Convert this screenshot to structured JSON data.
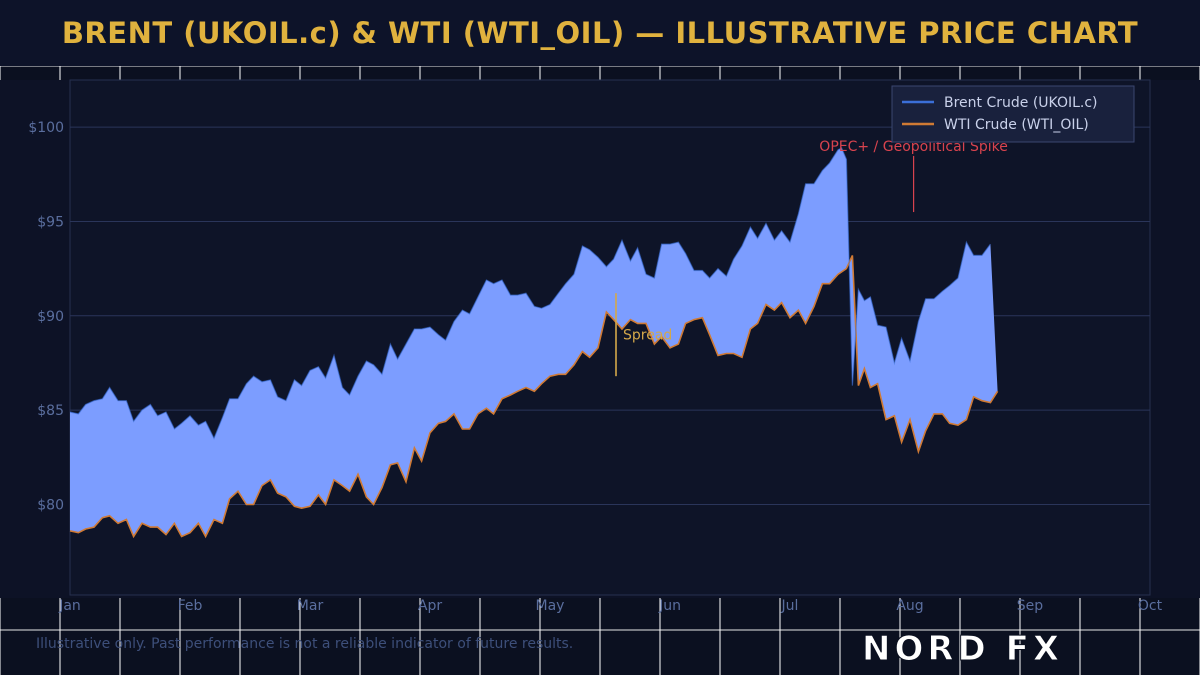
{
  "title": "BRENT (UKOIL.c) & WTI (WTI_OIL) — ILLUSTRATIVE PRICE CHART",
  "footer_note": "Illustrative only. Past performance is not a reliable indicator of future results.",
  "logo_text": "NORD FX",
  "colors": {
    "title": "#e0b23e",
    "brent": "#3b6fd8",
    "wti": "#d07a34",
    "fill": "#7c9dff",
    "annotation": "#d8434e",
    "spread": "#d4a84a",
    "axis_text": "#5a6e9e",
    "plot_bg": "#0e1428",
    "legend_bg": "#19213d"
  },
  "chart_data": {
    "type": "line",
    "title": "",
    "xlabel": "",
    "ylabel": "",
    "ylim": [
      75.2,
      102.5
    ],
    "xlim": [
      0,
      9
    ],
    "x_ticks": [
      {
        "x": 0,
        "label": "Jan"
      },
      {
        "x": 1,
        "label": "Feb"
      },
      {
        "x": 2,
        "label": "Mar"
      },
      {
        "x": 3,
        "label": "Apr"
      },
      {
        "x": 4,
        "label": "May"
      },
      {
        "x": 5,
        "label": "Jun"
      },
      {
        "x": 6,
        "label": "Jul"
      },
      {
        "x": 7,
        "label": "Aug"
      },
      {
        "x": 8,
        "label": "Sep"
      },
      {
        "x": 9,
        "label": "Oct"
      }
    ],
    "y_ticks": [
      {
        "y": 80,
        "label": "$80"
      },
      {
        "y": 85,
        "label": "$85"
      },
      {
        "y": 90,
        "label": "$90"
      },
      {
        "y": 95,
        "label": "$95"
      },
      {
        "y": 100,
        "label": "$100"
      }
    ],
    "grid": true,
    "legend_position": "top-right",
    "series": [
      {
        "name": "Brent Crude (UKOIL.c)",
        "points": [
          [
            0.0,
            84.9
          ],
          [
            0.07,
            84.8
          ],
          [
            0.13,
            85.3
          ],
          [
            0.2,
            85.5
          ],
          [
            0.27,
            85.6
          ],
          [
            0.33,
            86.2
          ],
          [
            0.4,
            85.5
          ],
          [
            0.47,
            85.5
          ],
          [
            0.53,
            84.4
          ],
          [
            0.6,
            85.0
          ],
          [
            0.67,
            85.3
          ],
          [
            0.73,
            84.7
          ],
          [
            0.8,
            84.9
          ],
          [
            0.87,
            84.0
          ],
          [
            0.93,
            84.3
          ],
          [
            1.0,
            84.7
          ],
          [
            1.07,
            84.2
          ],
          [
            1.13,
            84.4
          ],
          [
            1.2,
            83.5
          ],
          [
            1.27,
            84.6
          ],
          [
            1.33,
            85.6
          ],
          [
            1.4,
            85.6
          ],
          [
            1.47,
            86.4
          ],
          [
            1.53,
            86.8
          ],
          [
            1.6,
            86.5
          ],
          [
            1.67,
            86.6
          ],
          [
            1.73,
            85.7
          ],
          [
            1.8,
            85.5
          ],
          [
            1.87,
            86.6
          ],
          [
            1.93,
            86.3
          ],
          [
            2.0,
            87.1
          ],
          [
            2.07,
            87.3
          ],
          [
            2.13,
            86.7
          ],
          [
            2.2,
            87.9
          ],
          [
            2.27,
            86.2
          ],
          [
            2.33,
            85.8
          ],
          [
            2.4,
            86.8
          ],
          [
            2.47,
            87.6
          ],
          [
            2.53,
            87.4
          ],
          [
            2.6,
            86.9
          ],
          [
            2.67,
            88.5
          ],
          [
            2.73,
            87.7
          ],
          [
            2.8,
            88.5
          ],
          [
            2.87,
            89.3
          ],
          [
            2.93,
            89.3
          ],
          [
            3.0,
            89.4
          ],
          [
            3.07,
            89.0
          ],
          [
            3.13,
            88.7
          ],
          [
            3.2,
            89.7
          ],
          [
            3.27,
            90.3
          ],
          [
            3.33,
            90.1
          ],
          [
            3.4,
            91.0
          ],
          [
            3.47,
            91.9
          ],
          [
            3.53,
            91.7
          ],
          [
            3.6,
            91.9
          ],
          [
            3.67,
            91.1
          ],
          [
            3.73,
            91.1
          ],
          [
            3.8,
            91.2
          ],
          [
            3.87,
            90.5
          ],
          [
            3.93,
            90.4
          ],
          [
            4.0,
            90.6
          ],
          [
            4.07,
            91.2
          ],
          [
            4.13,
            91.7
          ],
          [
            4.2,
            92.2
          ],
          [
            4.27,
            93.7
          ],
          [
            4.33,
            93.5
          ],
          [
            4.4,
            93.1
          ],
          [
            4.47,
            92.6
          ],
          [
            4.53,
            93.0
          ],
          [
            4.6,
            94.0
          ],
          [
            4.67,
            92.9
          ],
          [
            4.73,
            93.6
          ],
          [
            4.8,
            92.2
          ],
          [
            4.87,
            92.0
          ],
          [
            4.93,
            93.8
          ],
          [
            5.0,
            93.8
          ],
          [
            5.07,
            93.9
          ],
          [
            5.13,
            93.3
          ],
          [
            5.2,
            92.4
          ],
          [
            5.27,
            92.4
          ],
          [
            5.33,
            92.0
          ],
          [
            5.4,
            92.5
          ],
          [
            5.47,
            92.1
          ],
          [
            5.53,
            93.0
          ],
          [
            5.6,
            93.7
          ],
          [
            5.67,
            94.7
          ],
          [
            5.73,
            94.1
          ],
          [
            5.8,
            94.9
          ],
          [
            5.87,
            94.0
          ],
          [
            5.93,
            94.5
          ],
          [
            6.0,
            93.9
          ],
          [
            6.07,
            95.4
          ],
          [
            6.13,
            97.0
          ],
          [
            6.2,
            97.0
          ],
          [
            6.27,
            97.7
          ],
          [
            6.33,
            98.1
          ],
          [
            6.4,
            98.8
          ],
          [
            6.43,
            98.9
          ],
          [
            6.47,
            98.3
          ],
          [
            6.52,
            86.3
          ],
          [
            6.57,
            91.4
          ],
          [
            6.62,
            90.8
          ],
          [
            6.67,
            91.0
          ],
          [
            6.73,
            89.5
          ],
          [
            6.8,
            89.4
          ],
          [
            6.87,
            87.5
          ],
          [
            6.93,
            88.8
          ],
          [
            7.0,
            87.6
          ],
          [
            7.07,
            89.7
          ],
          [
            7.13,
            90.9
          ],
          [
            7.2,
            90.9
          ],
          [
            7.27,
            91.3
          ],
          [
            7.33,
            91.6
          ],
          [
            7.4,
            92.0
          ],
          [
            7.47,
            93.9
          ],
          [
            7.53,
            93.2
          ],
          [
            7.6,
            93.2
          ],
          [
            7.67,
            93.8
          ]
        ]
      },
      {
        "name": "WTI Crude  (WTI_OIL)",
        "points": [
          [
            0.0,
            78.6
          ],
          [
            0.07,
            78.5
          ],
          [
            0.13,
            78.7
          ],
          [
            0.2,
            78.8
          ],
          [
            0.27,
            79.3
          ],
          [
            0.33,
            79.4
          ],
          [
            0.4,
            79.0
          ],
          [
            0.47,
            79.2
          ],
          [
            0.53,
            78.3
          ],
          [
            0.6,
            79.0
          ],
          [
            0.67,
            78.8
          ],
          [
            0.73,
            78.8
          ],
          [
            0.8,
            78.4
          ],
          [
            0.87,
            79.0
          ],
          [
            0.93,
            78.3
          ],
          [
            1.0,
            78.5
          ],
          [
            1.07,
            79.0
          ],
          [
            1.13,
            78.3
          ],
          [
            1.2,
            79.2
          ],
          [
            1.27,
            79.0
          ],
          [
            1.33,
            80.3
          ],
          [
            1.4,
            80.7
          ],
          [
            1.47,
            80.0
          ],
          [
            1.53,
            80.0
          ],
          [
            1.6,
            81.0
          ],
          [
            1.67,
            81.3
          ],
          [
            1.73,
            80.6
          ],
          [
            1.8,
            80.4
          ],
          [
            1.87,
            79.9
          ],
          [
            1.93,
            79.8
          ],
          [
            2.0,
            79.9
          ],
          [
            2.07,
            80.5
          ],
          [
            2.13,
            80.0
          ],
          [
            2.2,
            81.3
          ],
          [
            2.27,
            81.0
          ],
          [
            2.33,
            80.7
          ],
          [
            2.4,
            81.6
          ],
          [
            2.47,
            80.4
          ],
          [
            2.53,
            80.0
          ],
          [
            2.6,
            80.9
          ],
          [
            2.67,
            82.1
          ],
          [
            2.73,
            82.2
          ],
          [
            2.8,
            81.2
          ],
          [
            2.87,
            83.0
          ],
          [
            2.93,
            82.3
          ],
          [
            3.0,
            83.8
          ],
          [
            3.07,
            84.3
          ],
          [
            3.13,
            84.4
          ],
          [
            3.2,
            84.8
          ],
          [
            3.27,
            84.0
          ],
          [
            3.33,
            84.0
          ],
          [
            3.4,
            84.8
          ],
          [
            3.47,
            85.1
          ],
          [
            3.53,
            84.8
          ],
          [
            3.6,
            85.6
          ],
          [
            3.67,
            85.8
          ],
          [
            3.73,
            86.0
          ],
          [
            3.8,
            86.2
          ],
          [
            3.87,
            86.0
          ],
          [
            3.93,
            86.4
          ],
          [
            4.0,
            86.8
          ],
          [
            4.07,
            86.9
          ],
          [
            4.13,
            86.9
          ],
          [
            4.2,
            87.4
          ],
          [
            4.27,
            88.1
          ],
          [
            4.33,
            87.8
          ],
          [
            4.4,
            88.3
          ],
          [
            4.47,
            90.2
          ],
          [
            4.53,
            89.8
          ],
          [
            4.6,
            89.3
          ],
          [
            4.67,
            89.8
          ],
          [
            4.73,
            89.6
          ],
          [
            4.8,
            89.6
          ],
          [
            4.87,
            88.5
          ],
          [
            4.93,
            88.9
          ],
          [
            5.0,
            88.3
          ],
          [
            5.07,
            88.5
          ],
          [
            5.13,
            89.6
          ],
          [
            5.2,
            89.8
          ],
          [
            5.27,
            89.9
          ],
          [
            5.33,
            89.0
          ],
          [
            5.4,
            87.9
          ],
          [
            5.47,
            88.0
          ],
          [
            5.53,
            88.0
          ],
          [
            5.6,
            87.8
          ],
          [
            5.67,
            89.3
          ],
          [
            5.73,
            89.6
          ],
          [
            5.8,
            90.6
          ],
          [
            5.87,
            90.3
          ],
          [
            5.93,
            90.7
          ],
          [
            6.0,
            89.9
          ],
          [
            6.07,
            90.3
          ],
          [
            6.13,
            89.6
          ],
          [
            6.2,
            90.5
          ],
          [
            6.27,
            91.7
          ],
          [
            6.33,
            91.7
          ],
          [
            6.4,
            92.2
          ],
          [
            6.47,
            92.5
          ],
          [
            6.52,
            93.2
          ],
          [
            6.57,
            86.3
          ],
          [
            6.62,
            87.2
          ],
          [
            6.67,
            86.2
          ],
          [
            6.73,
            86.4
          ],
          [
            6.8,
            84.5
          ],
          [
            6.87,
            84.7
          ],
          [
            6.93,
            83.3
          ],
          [
            7.0,
            84.5
          ],
          [
            7.07,
            82.8
          ],
          [
            7.13,
            83.9
          ],
          [
            7.2,
            84.8
          ],
          [
            7.27,
            84.8
          ],
          [
            7.33,
            84.3
          ],
          [
            7.4,
            84.2
          ],
          [
            7.47,
            84.5
          ],
          [
            7.53,
            85.7
          ],
          [
            7.6,
            85.5
          ],
          [
            7.67,
            85.4
          ],
          [
            7.73,
            86.0
          ]
        ]
      }
    ],
    "annotations": [
      {
        "kind": "callout",
        "text": "OPEC+ / Geopolitical Spike",
        "x": 7.03,
        "y": 95.5,
        "label_y": 98.9
      },
      {
        "kind": "spread",
        "text": "Spread",
        "x": 4.55,
        "y_top": 91.2,
        "y_bottom": 86.8
      }
    ]
  }
}
